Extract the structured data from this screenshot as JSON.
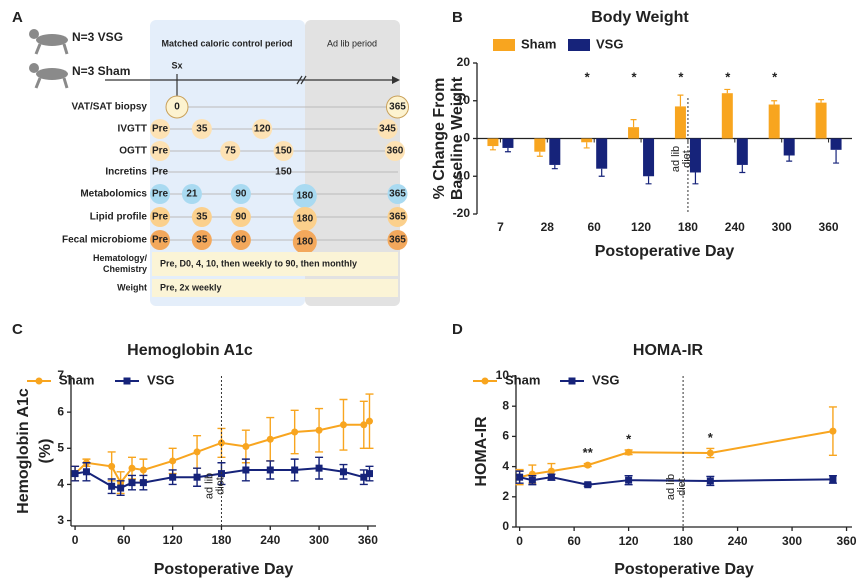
{
  "diagram": {
    "label": "A",
    "groups": [
      "N=3 VSG",
      "N=3 Sham"
    ],
    "surgery": "Sx",
    "header_left": "Matched caloric control period",
    "header_right": "Ad lib period",
    "rows": [
      {
        "label": "VAT/SAT biopsy",
        "points": [
          0,
          365
        ],
        "color": "#fdf3d0"
      },
      {
        "label": "IVGTT",
        "points": [
          "Pre",
          35,
          120,
          345
        ],
        "color": "#fde2b4"
      },
      {
        "label": "OGTT",
        "points": [
          "Pre",
          75,
          150,
          360
        ],
        "color": "#fde2b4"
      },
      {
        "label": "Incretins",
        "points": [
          "Pre",
          150
        ]
      },
      {
        "label": "Metabolomics",
        "points": [
          "Pre",
          21,
          90,
          180,
          365
        ],
        "color": "#a9daf1"
      },
      {
        "label": "Lipid profile",
        "points": [
          "Pre",
          35,
          90,
          180,
          365
        ],
        "color": "#fbd08c"
      },
      {
        "label": "Fecal microbiome",
        "points": [
          "Pre",
          35,
          90,
          180,
          365
        ],
        "color": "#f3a85c"
      }
    ],
    "text_rows": [
      {
        "label": [
          "Hematology/",
          "Chemistry"
        ],
        "text": "Pre, D0, 4, 10, then weekly to 90, then monthly"
      },
      {
        "label": [
          "Weight"
        ],
        "text": "Pre, 2x weekly"
      }
    ]
  },
  "chart_data": [
    {
      "type": "bar",
      "panel_label": "B",
      "title": "Body Weight",
      "xlabel": "Postoperative Day",
      "ylabel": [
        "% Change From",
        "Baseline Weight"
      ],
      "categories": [
        7,
        28,
        60,
        120,
        180,
        240,
        300,
        360
      ],
      "series": [
        {
          "name": "Sham",
          "color": "#f8a51f",
          "values": [
            -2,
            -3.5,
            -1,
            3,
            8.5,
            12,
            9,
            9.5
          ],
          "errors": [
            1,
            1.2,
            1.5,
            2,
            3,
            1,
            1,
            0.8
          ]
        },
        {
          "name": "VSG",
          "color": "#16237a",
          "values": [
            -2.5,
            -7,
            -8,
            -10,
            -9,
            -7,
            -4.5,
            -3
          ],
          "errors": [
            1,
            1,
            2,
            2,
            3,
            2,
            1.5,
            3.5
          ]
        }
      ],
      "significance": [
        null,
        null,
        "*",
        "*",
        "*",
        "*",
        "*",
        null
      ],
      "annotation": [
        "ad lib",
        "diet"
      ],
      "annotation_x": 180,
      "ylim": [
        -20,
        20
      ],
      "yticks": [
        -20,
        -10,
        0,
        10,
        20
      ]
    },
    {
      "type": "line",
      "panel_label": "C",
      "title": "Hemoglobin A1c",
      "xlabel": "Postoperative Day",
      "ylabel": [
        "Hemoglobin A1c",
        "(%)"
      ],
      "x": [
        0,
        14,
        45,
        56,
        70,
        84,
        120,
        150,
        180,
        210,
        240,
        270,
        300,
        330,
        355,
        362
      ],
      "series": [
        {
          "name": "Sham",
          "color": "#f8a51f",
          "values": [
            4.3,
            4.6,
            4.5,
            4.05,
            4.45,
            4.4,
            4.65,
            4.9,
            5.15,
            5.05,
            5.25,
            5.45,
            5.5,
            5.65,
            5.65,
            5.75
          ],
          "errors": [
            0.2,
            0.1,
            0.4,
            0.3,
            0.3,
            0.3,
            0.35,
            0.45,
            0.4,
            0.45,
            0.6,
            0.6,
            0.6,
            0.7,
            0.65,
            0.75
          ]
        },
        {
          "name": "VSG",
          "color": "#16237a",
          "values": [
            4.3,
            4.35,
            3.95,
            3.9,
            4.05,
            4.05,
            4.2,
            4.2,
            4.3,
            4.4,
            4.4,
            4.4,
            4.45,
            4.35,
            4.2,
            4.3
          ],
          "errors": [
            0.2,
            0.25,
            0.2,
            0.2,
            0.2,
            0.2,
            0.2,
            0.25,
            0.3,
            0.3,
            0.25,
            0.3,
            0.3,
            0.2,
            0.2,
            0.2
          ]
        }
      ],
      "annotation": [
        "ad lib",
        "diet"
      ],
      "annotation_x": 180,
      "xlim": [
        -5,
        370
      ],
      "xticks": [
        0,
        60,
        120,
        180,
        240,
        300,
        360
      ],
      "ylim": [
        2.85,
        7
      ],
      "yticks": [
        3,
        4,
        5,
        6,
        7
      ]
    },
    {
      "type": "line",
      "panel_label": "D",
      "title": "HOMA-IR",
      "xlabel": "Postoperative Day",
      "ylabel": [
        "HOMA-IR"
      ],
      "x": [
        0,
        14,
        35,
        75,
        120,
        210,
        345
      ],
      "series": [
        {
          "name": "Sham",
          "color": "#f8a51f",
          "values": [
            3.3,
            3.5,
            3.7,
            4.1,
            4.95,
            4.9,
            6.35
          ],
          "errors": [
            0.5,
            0.6,
            0.5,
            0.1,
            0.15,
            0.3,
            1.6
          ]
        },
        {
          "name": "VSG",
          "color": "#16237a",
          "values": [
            3.3,
            3.1,
            3.3,
            2.8,
            3.1,
            3.05,
            3.15
          ],
          "errors": [
            0.4,
            0.3,
            0.2,
            0.1,
            0.3,
            0.3,
            0.25
          ]
        }
      ],
      "significance": [
        null,
        null,
        null,
        "**",
        "*",
        "*",
        null
      ],
      "annotation": [
        "ad lib",
        "diet"
      ],
      "annotation_x": 180,
      "xlim": [
        -4,
        366
      ],
      "xticks": [
        0,
        60,
        120,
        180,
        240,
        300,
        360
      ],
      "ylim": [
        0,
        10
      ],
      "yticks": [
        0,
        2,
        4,
        6,
        8,
        10
      ]
    }
  ]
}
